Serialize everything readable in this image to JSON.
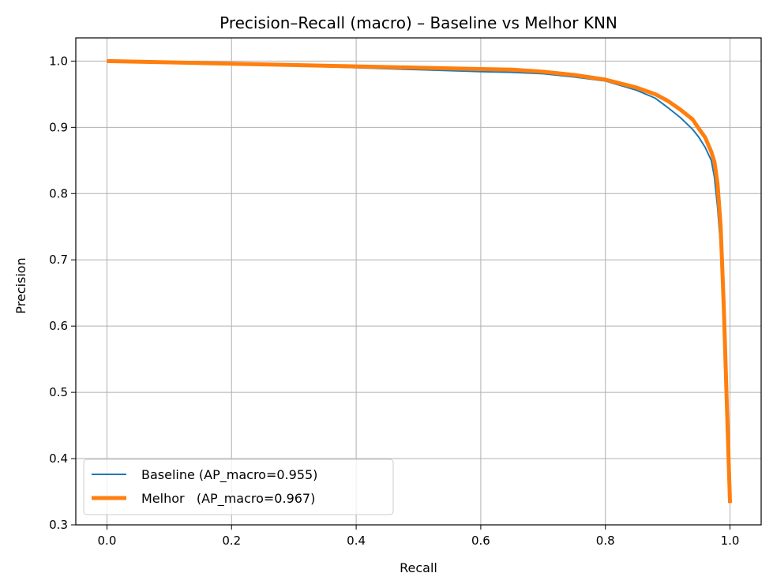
{
  "chart_data": {
    "type": "line",
    "title": "Precision–Recall (macro) – Baseline vs Melhor KNN",
    "xlabel": "Recall",
    "ylabel": "Precision",
    "xlim": [
      -0.05,
      1.05
    ],
    "ylim": [
      0.3,
      1.035
    ],
    "xticks": [
      0.0,
      0.2,
      0.4,
      0.6,
      0.8,
      1.0
    ],
    "xtick_labels": [
      "0.0",
      "0.2",
      "0.4",
      "0.6",
      "0.8",
      "1.0"
    ],
    "yticks": [
      0.3,
      0.4,
      0.5,
      0.6,
      0.7,
      0.8,
      0.9,
      1.0
    ],
    "ytick_labels": [
      "0.3",
      "0.4",
      "0.5",
      "0.6",
      "0.7",
      "0.8",
      "0.9",
      "1.0"
    ],
    "grid": true,
    "legend": {
      "position": "lower-left"
    },
    "series": [
      {
        "name": "Baseline (AP_macro=0.955)",
        "color": "#1f77b4",
        "line_weight": "thin",
        "x": [
          0.0,
          0.1,
          0.2,
          0.3,
          0.4,
          0.5,
          0.6,
          0.65,
          0.7,
          0.75,
          0.8,
          0.85,
          0.88,
          0.9,
          0.92,
          0.94,
          0.95,
          0.96,
          0.97,
          0.975,
          0.98,
          0.985,
          0.99,
          0.995,
          1.0
        ],
        "y": [
          1.0,
          0.998,
          0.995,
          0.993,
          0.99,
          0.987,
          0.984,
          0.983,
          0.981,
          0.976,
          0.97,
          0.956,
          0.944,
          0.93,
          0.915,
          0.897,
          0.885,
          0.87,
          0.85,
          0.825,
          0.78,
          0.72,
          0.62,
          0.47,
          0.333
        ]
      },
      {
        "name": "Melhor   (AP_macro=0.967)",
        "color": "#ff7f0e",
        "line_weight": "thick",
        "x": [
          0.0,
          0.1,
          0.2,
          0.3,
          0.4,
          0.5,
          0.6,
          0.65,
          0.7,
          0.75,
          0.8,
          0.85,
          0.88,
          0.9,
          0.92,
          0.94,
          0.95,
          0.96,
          0.97,
          0.975,
          0.98,
          0.985,
          0.99,
          0.995,
          1.0
        ],
        "y": [
          1.0,
          0.998,
          0.996,
          0.994,
          0.992,
          0.99,
          0.988,
          0.987,
          0.984,
          0.979,
          0.972,
          0.96,
          0.95,
          0.94,
          0.927,
          0.912,
          0.898,
          0.885,
          0.863,
          0.848,
          0.815,
          0.75,
          0.63,
          0.48,
          0.333
        ]
      }
    ]
  }
}
